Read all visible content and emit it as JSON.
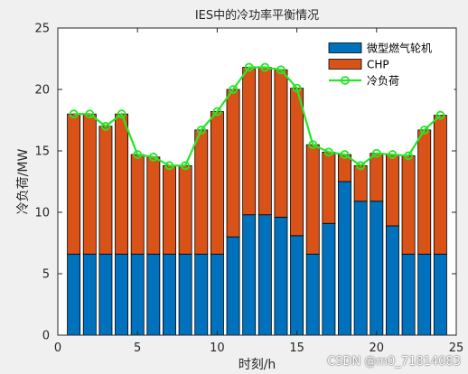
{
  "chart_data": {
    "type": "bar",
    "stacked": true,
    "title": "IES中的冷功率平衡情况",
    "xlabel": "时刻/h",
    "ylabel": "冷负荷/MW",
    "xlim": [
      0,
      25
    ],
    "ylim": [
      0,
      25
    ],
    "xticks": [
      "0",
      "5",
      "10",
      "15",
      "20",
      "25"
    ],
    "yticks": [
      "0",
      "5",
      "10",
      "15",
      "20",
      "25"
    ],
    "grid": false,
    "legend_position": "top-right",
    "x": [
      1,
      2,
      3,
      4,
      5,
      6,
      7,
      8,
      9,
      10,
      11,
      12,
      13,
      14,
      15,
      16,
      17,
      18,
      19,
      20,
      21,
      22,
      23,
      24
    ],
    "series": [
      {
        "name": "微型燃气轮机",
        "color": "#0072bd",
        "values": [
          6.6,
          6.6,
          6.6,
          6.6,
          6.6,
          6.6,
          6.6,
          6.6,
          6.6,
          6.6,
          8.0,
          9.8,
          9.8,
          9.6,
          8.1,
          6.6,
          9.1,
          12.5,
          10.9,
          10.9,
          8.9,
          6.6,
          6.6,
          6.6
        ]
      },
      {
        "name": "CHP",
        "color": "#d95319",
        "values": [
          11.4,
          11.4,
          10.4,
          11.4,
          8.1,
          7.9,
          7.2,
          7.2,
          10.1,
          11.6,
          12.0,
          12.0,
          12.0,
          12.0,
          12.0,
          8.9,
          5.8,
          2.2,
          2.9,
          3.9,
          5.8,
          8.0,
          10.1,
          11.3
        ]
      },
      {
        "name": "冷负荷",
        "type": "line",
        "color": "#26e626",
        "values": [
          18.0,
          18.0,
          17.0,
          18.0,
          14.7,
          14.5,
          13.8,
          13.8,
          16.7,
          18.2,
          20.0,
          21.8,
          21.8,
          21.6,
          20.1,
          15.5,
          14.9,
          14.7,
          13.8,
          14.8,
          14.7,
          14.6,
          16.7,
          17.9
        ]
      }
    ]
  },
  "watermark": "CSDN @m0_71814083"
}
